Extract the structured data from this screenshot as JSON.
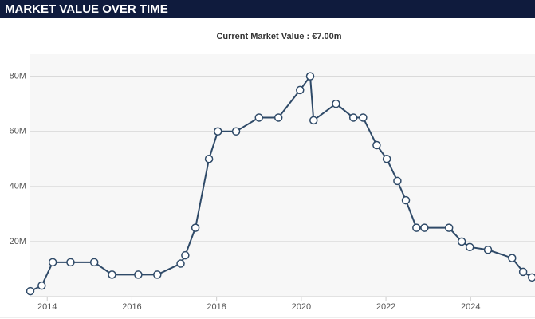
{
  "chart_data": {
    "type": "line",
    "title": "MARKET VALUE OVER TIME",
    "subtitle": "Current Market Value : €7.00m",
    "x": [
      2013.6,
      2013.87,
      2014.13,
      2014.55,
      2015.11,
      2015.53,
      2016.15,
      2016.6,
      2017.15,
      2017.26,
      2017.5,
      2017.82,
      2018.03,
      2018.46,
      2019.0,
      2019.46,
      2019.97,
      2020.21,
      2020.29,
      2020.82,
      2021.23,
      2021.46,
      2021.78,
      2022.02,
      2022.27,
      2022.47,
      2022.72,
      2022.91,
      2023.49,
      2023.79,
      2023.98,
      2024.41,
      2024.98,
      2025.24,
      2025.45
    ],
    "series": [
      {
        "name": "Market value",
        "color": "#2f4a68",
        "values": [
          2,
          4,
          12.5,
          12.5,
          12.5,
          8,
          8,
          8,
          12,
          15,
          25,
          50,
          60,
          60,
          65,
          65,
          75,
          80,
          64,
          70,
          65,
          65,
          55,
          50,
          42,
          35,
          25,
          25,
          25,
          20,
          18,
          17,
          14,
          9,
          7
        ]
      }
    ],
    "xlim": [
      2013.6,
      2025.52
    ],
    "xticks": [
      2014,
      2016,
      2018,
      2020,
      2022,
      2024
    ],
    "ylim": [
      0,
      88
    ],
    "yticks": [
      {
        "value": 20,
        "label": "20M"
      },
      {
        "value": 40,
        "label": "40M"
      },
      {
        "value": 60,
        "label": "60M"
      },
      {
        "value": 80,
        "label": "80M"
      }
    ],
    "grid": true
  }
}
